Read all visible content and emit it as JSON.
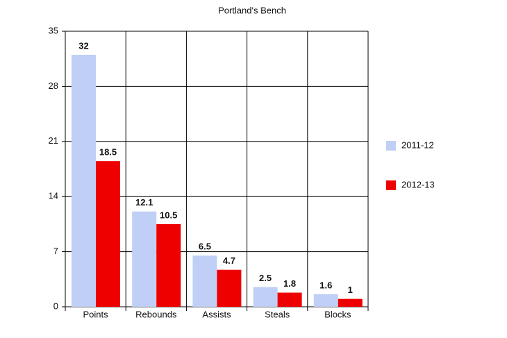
{
  "chart_data": {
    "type": "bar",
    "title": "Portland's Bench",
    "categories": [
      "Points",
      "Rebounds",
      "Assists",
      "Steals",
      "Blocks"
    ],
    "series": [
      {
        "name": "2011-12",
        "color": "#bfcff5",
        "values": [
          32,
          12.1,
          6.5,
          2.5,
          1.6
        ]
      },
      {
        "name": "2012-13",
        "color": "#ee0000",
        "values": [
          18.5,
          10.5,
          4.7,
          1.8,
          1
        ]
      }
    ],
    "ylim": [
      0,
      35
    ],
    "yticks": [
      0,
      7,
      14,
      21,
      28,
      35
    ],
    "grid": true,
    "legend": "right"
  }
}
